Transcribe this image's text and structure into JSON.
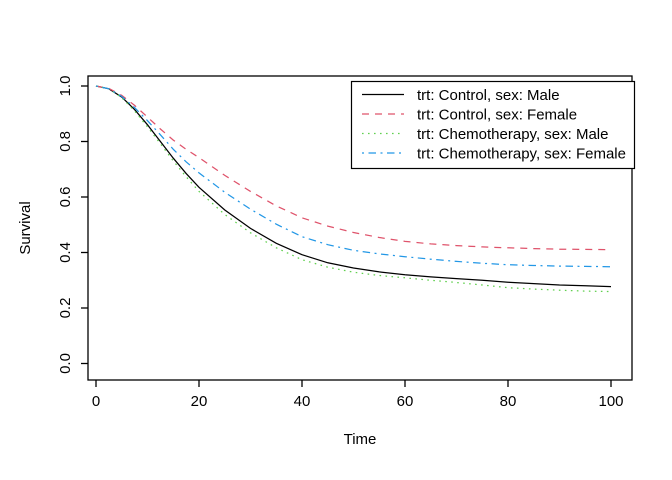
{
  "window": {
    "background": "#ffffff",
    "foreground": "#000000"
  },
  "chart_data": {
    "type": "line",
    "title": "",
    "xlabel": "Time",
    "ylabel": "Survival",
    "xlim": [
      0,
      100
    ],
    "ylim": [
      0.0,
      1.0
    ],
    "xticks": [
      0,
      20,
      40,
      60,
      80,
      100
    ],
    "yticks": [
      "0.0",
      "0.2",
      "0.4",
      "0.6",
      "0.8",
      "1.0"
    ],
    "grid": false,
    "legend_position": "top-right",
    "x": [
      0,
      2.5,
      5,
      7.5,
      10,
      12.5,
      15,
      17.5,
      20,
      25,
      30,
      35,
      40,
      45,
      50,
      55,
      60,
      65,
      70,
      75,
      80,
      85,
      90,
      95,
      100
    ],
    "series": [
      {
        "name": "trt: Control, sex: Male",
        "color": "#000000",
        "linetype": "solid",
        "values": [
          1.0,
          0.99,
          0.96,
          0.915,
          0.86,
          0.8,
          0.74,
          0.685,
          0.635,
          0.553,
          0.487,
          0.433,
          0.392,
          0.363,
          0.344,
          0.33,
          0.32,
          0.312,
          0.306,
          0.3,
          0.293,
          0.288,
          0.283,
          0.28,
          0.277
        ]
      },
      {
        "name": "trt: Control, sex: Female",
        "color": "#DF536B",
        "linetype": "dashed",
        "values": [
          1.0,
          0.991,
          0.966,
          0.93,
          0.888,
          0.845,
          0.805,
          0.772,
          0.742,
          0.678,
          0.62,
          0.568,
          0.525,
          0.495,
          0.472,
          0.454,
          0.44,
          0.431,
          0.425,
          0.42,
          0.417,
          0.414,
          0.412,
          0.411,
          0.41
        ]
      },
      {
        "name": "trt: Chemotherapy, sex: Male",
        "color": "#61D04F",
        "linetype": "dotted",
        "values": [
          1.0,
          0.99,
          0.958,
          0.91,
          0.853,
          0.792,
          0.73,
          0.673,
          0.62,
          0.537,
          0.471,
          0.417,
          0.374,
          0.347,
          0.329,
          0.317,
          0.309,
          0.3,
          0.292,
          0.283,
          0.273,
          0.268,
          0.264,
          0.261,
          0.259
        ]
      },
      {
        "name": "trt: Chemotherapy, sex: Female",
        "color": "#2297E6",
        "linetype": "dashdot",
        "values": [
          1.0,
          0.99,
          0.962,
          0.922,
          0.875,
          0.824,
          0.772,
          0.727,
          0.687,
          0.617,
          0.556,
          0.502,
          0.457,
          0.428,
          0.408,
          0.395,
          0.385,
          0.376,
          0.368,
          0.361,
          0.356,
          0.353,
          0.351,
          0.35,
          0.349
        ]
      }
    ]
  }
}
